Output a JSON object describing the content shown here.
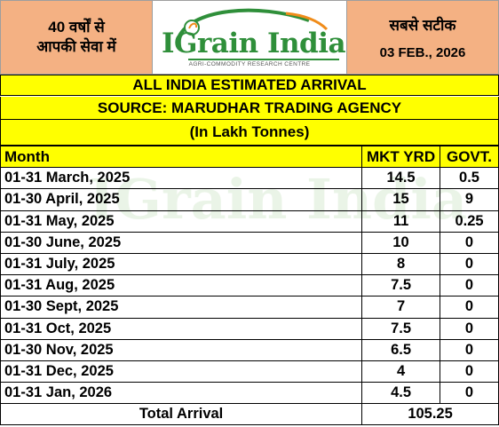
{
  "header": {
    "left_line1": "40 वर्षों से",
    "left_line2": "आपकी सेवा में",
    "logo_text": "IGrain India",
    "logo_tagline": "AGRI-COMMODITY RESEARCH CENTRE",
    "right_line1": "सबसे सटीक",
    "date": "03 FEB., 2026"
  },
  "titles": {
    "main": "ALL INDIA ESTIMATED ARRIVAL",
    "source": "SOURCE: MARUDHAR TRADING AGENCY",
    "unit": "(In Lakh Tonnes)"
  },
  "table": {
    "columns": [
      "Month",
      "MKT YRD",
      "GOVT."
    ],
    "rows": [
      {
        "month": "01-31 March, 2025",
        "mkt": "14.5",
        "govt": "0.5"
      },
      {
        "month": "01-30 April, 2025",
        "mkt": "15",
        "govt": "9"
      },
      {
        "month": "01-31 May, 2025",
        "mkt": "11",
        "govt": "0.25"
      },
      {
        "month": "01-30 June, 2025",
        "mkt": "10",
        "govt": "0"
      },
      {
        "month": "01-31 July, 2025",
        "mkt": "8",
        "govt": "0"
      },
      {
        "month": "01-31 Aug, 2025",
        "mkt": "7.5",
        "govt": "0"
      },
      {
        "month": "01-30 Sept, 2025",
        "mkt": "7",
        "govt": "0"
      },
      {
        "month": "01-31 Oct, 2025",
        "mkt": "7.5",
        "govt": "0"
      },
      {
        "month": "01-30 Nov, 2025",
        "mkt": "6.5",
        "govt": "0"
      },
      {
        "month": "01-31 Dec, 2025",
        "mkt": "4",
        "govt": "0"
      },
      {
        "month": "01-31 Jan, 2026",
        "mkt": "4.5",
        "govt": "0"
      }
    ],
    "total_label": "Total Arrival",
    "total_value": "105.25"
  },
  "watermark": "IGrain India",
  "colors": {
    "header_orange": "#f4b183",
    "title_yellow": "#ffff00",
    "logo_green": "#2f8f3a",
    "logo_orange": "#f08c1a"
  }
}
